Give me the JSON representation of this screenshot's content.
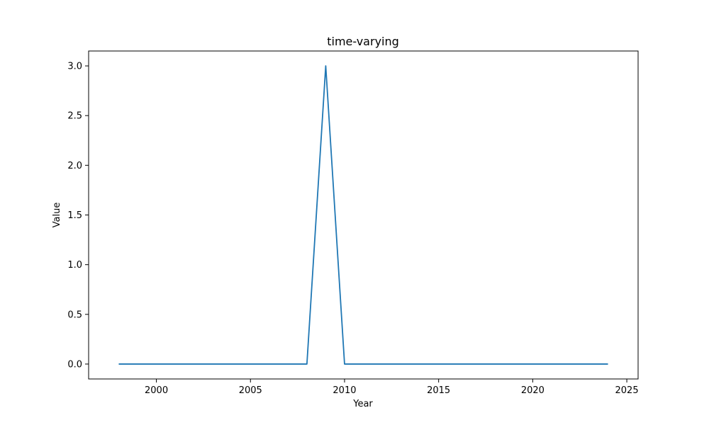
{
  "chart_data": {
    "type": "line",
    "title": "time-varying",
    "xlabel": "Year",
    "ylabel": "Value",
    "xlim": [
      1996.4,
      2025.6
    ],
    "ylim": [
      -0.15,
      3.15
    ],
    "grid": false,
    "legend": "none",
    "x_ticks": [
      2000,
      2005,
      2010,
      2015,
      2020,
      2025
    ],
    "y_ticks": [
      0.0,
      0.5,
      1.0,
      1.5,
      2.0,
      2.5,
      3.0
    ],
    "x_tick_labels": [
      "2000",
      "2005",
      "2010",
      "2015",
      "2020",
      "2025"
    ],
    "y_tick_labels": [
      "0.0",
      "0.5",
      "1.0",
      "1.5",
      "2.0",
      "2.5",
      "3.0"
    ],
    "series": [
      {
        "color": "#1f77b4",
        "x": [
          1998,
          1999,
          2000,
          2001,
          2002,
          2003,
          2004,
          2005,
          2006,
          2007,
          2008,
          2009,
          2010,
          2011,
          2012,
          2013,
          2014,
          2015,
          2016,
          2017,
          2018,
          2019,
          2020,
          2021,
          2022,
          2023,
          2024
        ],
        "y": [
          0,
          0,
          0,
          0,
          0,
          0,
          0,
          0,
          0,
          0,
          0,
          3,
          0,
          0,
          0,
          0,
          0,
          0,
          0,
          0,
          0,
          0,
          0,
          0,
          0,
          0,
          0
        ]
      }
    ]
  }
}
